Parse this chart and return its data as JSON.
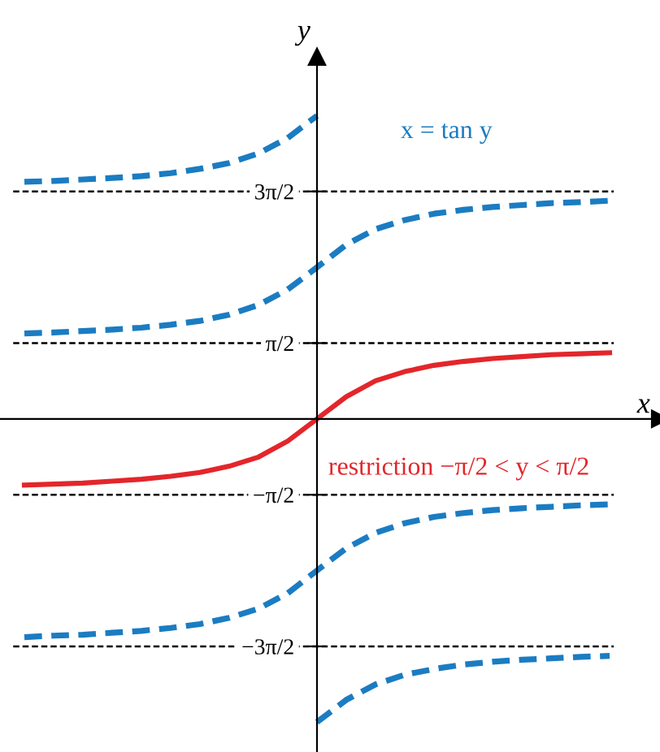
{
  "chart_data": {
    "type": "line",
    "xlabel": "x",
    "ylabel": "y",
    "categories": [
      null,
      null,
      null,
      null,
      null,
      null,
      null,
      null,
      null,
      null,
      null,
      null,
      null,
      null,
      null,
      null,
      null,
      null,
      null,
      null,
      null
    ],
    "series": [
      {
        "name": "restriction −π/2 < y < π/2",
        "color": "#e3262b",
        "line_style": "solid",
        "values": [
          -1.37,
          -1.35,
          -1.33,
          -1.29,
          -1.25,
          -1.19,
          -1.11,
          -0.98,
          -0.79,
          -0.46,
          0,
          0.46,
          0.79,
          0.98,
          1.11,
          1.19,
          1.25,
          1.29,
          1.33,
          1.35,
          1.37
        ]
      },
      {
        "name": "x = tan y",
        "color": "#1b7cc2",
        "line_style": "dashed",
        "values": [
          1.77,
          1.79,
          1.82,
          1.85,
          1.89,
          1.95,
          2.03,
          2.16,
          2.36,
          2.68,
          3.14,
          3.61,
          3.93,
          4.12,
          4.25,
          4.33,
          4.39,
          4.43,
          4.47,
          4.49,
          4.52
        ]
      },
      {
        "color": "#1b7cc2",
        "line_style": "dashed",
        "values": [
          -4.52,
          -4.49,
          -4.47,
          -4.43,
          -4.39,
          -4.33,
          -4.25,
          -4.12,
          -3.93,
          -3.61,
          -3.14,
          -2.68,
          -2.36,
          -2.16,
          -2.03,
          -1.95,
          -1.89,
          -1.85,
          -1.82,
          -1.79,
          -1.77
        ]
      },
      {
        "color": "#1b7cc2",
        "line_style": "dashed",
        "values": [
          4.91,
          4.93,
          4.96,
          4.99,
          5.03,
          5.09,
          5.18,
          5.3,
          5.5,
          5.82,
          6.28,
          null,
          null,
          null,
          null,
          null,
          null,
          null,
          null,
          null,
          null
        ]
      },
      {
        "color": "#1b7cc2",
        "line_style": "dashed",
        "values": [
          null,
          null,
          null,
          null,
          null,
          null,
          null,
          null,
          null,
          null,
          -6.28,
          -5.82,
          -5.5,
          -5.3,
          -5.18,
          -5.09,
          -5.03,
          -4.99,
          -4.96,
          -4.93,
          -4.91
        ]
      }
    ],
    "ylim": [
      -6.9,
      7.5
    ],
    "yticks": [
      {
        "value": 4.712,
        "label": "3π/2"
      },
      {
        "value": 1.571,
        "label": "π/2"
      },
      {
        "value": -1.571,
        "label": "−π/2"
      },
      {
        "value": -4.712,
        "label": "−3π/2"
      }
    ],
    "ref_lines": [
      {
        "axis": "y",
        "value": 4.712,
        "color": "#000000",
        "line_style": "dashed"
      },
      {
        "axis": "y",
        "value": 1.571,
        "color": "#000000",
        "line_style": "dashed"
      },
      {
        "axis": "y",
        "value": -1.571,
        "color": "#000000",
        "line_style": "dashed"
      },
      {
        "axis": "y",
        "value": -4.712,
        "color": "#000000",
        "line_style": "dashed"
      }
    ],
    "grid": false,
    "legend": false,
    "tick_labels": "y"
  }
}
